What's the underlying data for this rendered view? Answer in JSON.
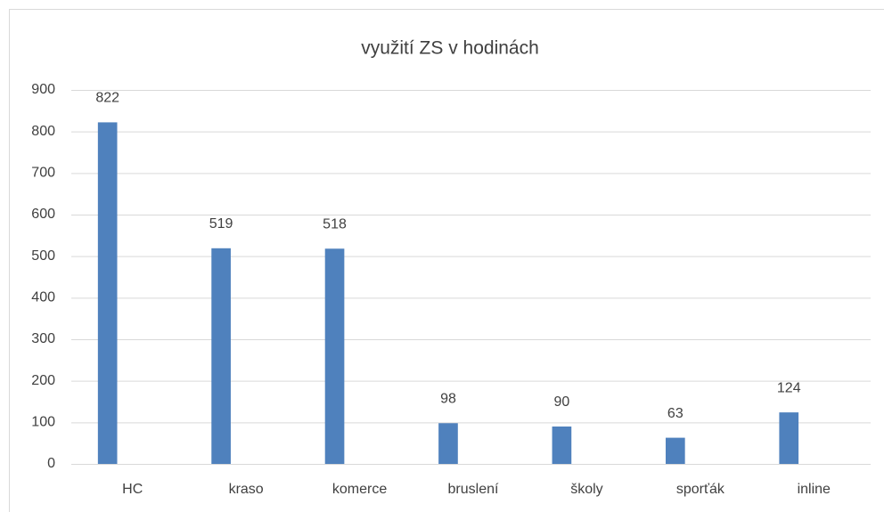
{
  "chart_data": {
    "type": "bar",
    "title": "využití ZS v hodinách",
    "categories": [
      "HC",
      "kraso",
      "komerce",
      "bruslení",
      "školy",
      "sporťák",
      "inline"
    ],
    "values": [
      822,
      519,
      518,
      98,
      90,
      63,
      124
    ],
    "color": "#4f81bd",
    "ylim": [
      0,
      900
    ],
    "yticks": [
      0,
      100,
      200,
      300,
      400,
      500,
      600,
      700,
      800,
      900
    ],
    "grid": true
  }
}
